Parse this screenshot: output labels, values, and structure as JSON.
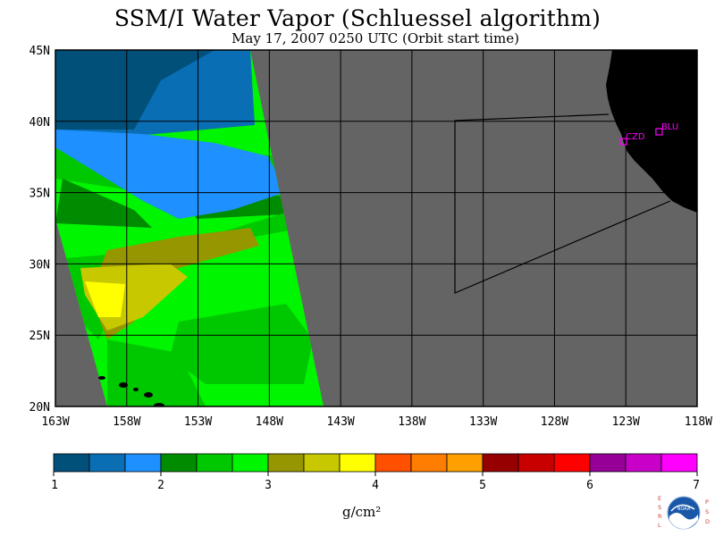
{
  "title": "SSM/I Water Vapor (Schluessel algorithm)",
  "subtitle": "May 17, 2007  0250 UTC  (Orbit start time)",
  "map": {
    "lat_labels": [
      "45N",
      "40N",
      "35N",
      "30N",
      "25N",
      "20N"
    ],
    "lon_labels": [
      "163W",
      "158W",
      "153W",
      "148W",
      "143W",
      "138W",
      "133W",
      "128W",
      "123W",
      "118W"
    ],
    "lat_range": [
      20,
      45
    ],
    "lon_range": [
      -163,
      -118
    ],
    "no_data_color": "#646464",
    "land_color": "#000000",
    "stations": [
      {
        "id": "CZD",
        "lat": 38.6,
        "lon": -123.2
      },
      {
        "id": "BLU",
        "lat": 39.3,
        "lon": -120.7
      }
    ]
  },
  "colorbar": {
    "colors": [
      "#00507a",
      "#0a6eb4",
      "#1e90ff",
      "#008c00",
      "#00c800",
      "#00f500",
      "#969600",
      "#c8c800",
      "#ffff00",
      "#ff5000",
      "#ff7d00",
      "#ffa000",
      "#960000",
      "#c80000",
      "#ff0000",
      "#960096",
      "#c800c8",
      "#ff00ff"
    ],
    "tick_labels": [
      "1",
      "2",
      "3",
      "4",
      "5",
      "6",
      "7"
    ],
    "units": "g/cm²"
  },
  "logo": {
    "left_text": "ESRL",
    "right_text": "PSD",
    "center_text": "NOAA"
  }
}
